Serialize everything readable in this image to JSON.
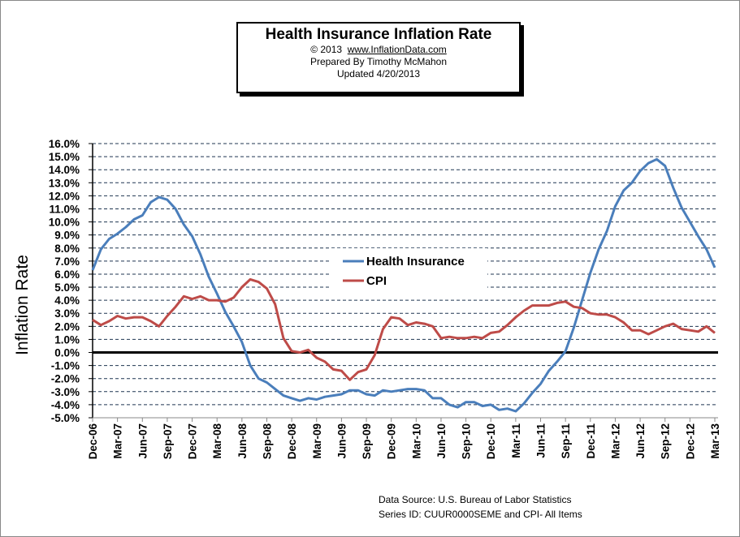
{
  "title_box": {
    "title": "Health Insurance Inflation Rate",
    "copyright": "© 2013",
    "url": "www.InflationData.com",
    "prepared": "Prepared  By Timothy McMahon",
    "updated": "Updated  4/20/2013"
  },
  "source": {
    "line1": "Data Source:   U.S. Bureau of Labor Statistics",
    "line2": "Series ID: CUUR0000SEME   and    CPI- All Items"
  },
  "chart_data": {
    "type": "line",
    "title": "Health Insurance Inflation Rate",
    "ylabel": "Inflation Rate",
    "xlabel": "",
    "ylim": [
      -5,
      16
    ],
    "ytick_step": 1,
    "ytick_labels": [
      "16.0%",
      "15.0%",
      "14.0%",
      "13.0%",
      "12.0%",
      "11.0%",
      "10.0%",
      "9.0%",
      "8.0%",
      "7.0%",
      "6.0%",
      "5.0%",
      "4.0%",
      "3.0%",
      "2.0%",
      "1.0%",
      "0.0%",
      "-1.0%",
      "-2.0%",
      "-3.0%",
      "-4.0%",
      "-5.0%"
    ],
    "xtick_labels": [
      "Dec-06",
      "Mar-07",
      "Jun-07",
      "Sep-07",
      "Dec-07",
      "Mar-08",
      "Jun-08",
      "Sep-08",
      "Dec-08",
      "Mar-09",
      "Jun-09",
      "Sep-09",
      "Dec-09",
      "Mar-10",
      "Jun-10",
      "Sep-10",
      "Dec-10",
      "Mar-11",
      "Jun-11",
      "Sep-11",
      "Dec-11",
      "Mar-12",
      "Jun-12",
      "Sep-12",
      "Dec-12",
      "Mar-13"
    ],
    "x_range": [
      "Dec-06",
      "Mar-13"
    ],
    "x_frequency": "monthly",
    "grid": "horizontal dashed",
    "legend": "center",
    "series": [
      {
        "name": "Health Insurance",
        "color": "#4a7ebb",
        "values": [
          6.3,
          7.9,
          8.7,
          9.1,
          9.6,
          10.2,
          10.5,
          11.5,
          11.9,
          11.7,
          11.0,
          9.8,
          8.9,
          7.5,
          5.8,
          4.5,
          3.1,
          2.0,
          0.8,
          -1.0,
          -2.0,
          -2.3,
          -2.8,
          -3.3,
          -3.5,
          -3.7,
          -3.5,
          -3.6,
          -3.4,
          -3.3,
          -3.2,
          -2.9,
          -2.9,
          -3.2,
          -3.3,
          -2.9,
          -3.0,
          -2.9,
          -2.8,
          -2.8,
          -2.9,
          -3.5,
          -3.5,
          -4.0,
          -4.2,
          -3.8,
          -3.8,
          -4.1,
          -4.0,
          -4.4,
          -4.3,
          -4.5,
          -3.9,
          -3.1,
          -2.4,
          -1.4,
          -0.7,
          0.1,
          1.9,
          4.0,
          6.1,
          7.9,
          9.3,
          11.2,
          12.4,
          13.0,
          13.9,
          14.5,
          14.8,
          14.3,
          12.6,
          11.1,
          10.0,
          8.9,
          7.9,
          6.5
        ]
      },
      {
        "name": "CPI",
        "color": "#be4b48",
        "values": [
          2.5,
          2.1,
          2.4,
          2.8,
          2.6,
          2.7,
          2.7,
          2.4,
          2.0,
          2.8,
          3.5,
          4.3,
          4.1,
          4.3,
          4.0,
          4.0,
          3.9,
          4.2,
          5.0,
          5.6,
          5.4,
          4.9,
          3.7,
          1.1,
          0.1,
          0.0,
          0.2,
          -0.4,
          -0.7,
          -1.3,
          -1.4,
          -2.1,
          -1.5,
          -1.3,
          -0.2,
          1.8,
          2.7,
          2.6,
          2.1,
          2.3,
          2.2,
          2.0,
          1.1,
          1.2,
          1.1,
          1.1,
          1.2,
          1.1,
          1.5,
          1.6,
          2.1,
          2.7,
          3.2,
          3.6,
          3.6,
          3.6,
          3.8,
          3.9,
          3.5,
          3.4,
          3.0,
          2.9,
          2.9,
          2.7,
          2.3,
          1.7,
          1.7,
          1.4,
          1.7,
          2.0,
          2.2,
          1.8,
          1.7,
          1.6,
          2.0,
          1.5
        ]
      }
    ]
  }
}
